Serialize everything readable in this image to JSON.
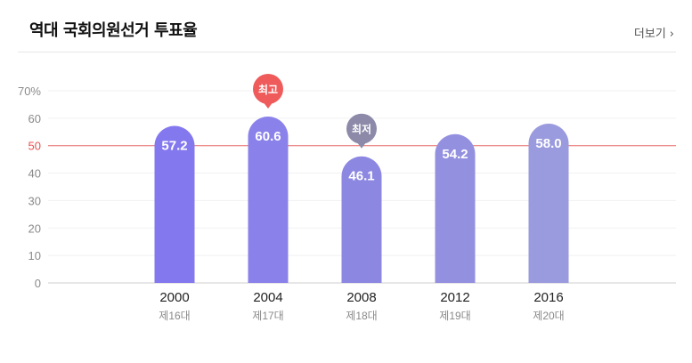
{
  "header": {
    "title": "역대 국회의원선거 투표율",
    "more_label": "더보기",
    "more_icon": "chevron-right-icon"
  },
  "chart_data": {
    "type": "bar",
    "title": "",
    "xlabel": "",
    "ylabel": "",
    "ylim": [
      0,
      70
    ],
    "y_ticks": [
      "0",
      "10",
      "20",
      "30",
      "40",
      "50",
      "60",
      "70%"
    ],
    "reference_line": {
      "value": 50,
      "color": "#e8504f"
    },
    "categories": [
      "2000",
      "2004",
      "2008",
      "2012",
      "2016"
    ],
    "sub_labels": [
      "제16대",
      "제17대",
      "제18대",
      "제19대",
      "제20대"
    ],
    "values": [
      57.2,
      60.6,
      46.1,
      54.2,
      58.0
    ],
    "value_labels": [
      "57.2",
      "60.6",
      "46.1",
      "54.2",
      "58.0"
    ],
    "bar_colors": [
      "#8478ef",
      "#8a82ea",
      "#8c88e2",
      "#9490e0",
      "#9a9ade"
    ],
    "badges": [
      {
        "index": 1,
        "label": "최고",
        "color": "#ef5b5b"
      },
      {
        "index": 2,
        "label": "최저",
        "color": "#8c8aa8"
      }
    ],
    "grid": true,
    "legend": "none"
  }
}
